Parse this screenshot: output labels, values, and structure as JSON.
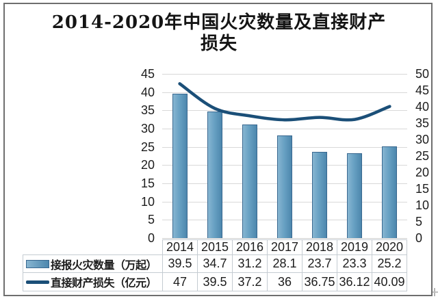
{
  "title": {
    "line1": "2014-2020年中国火灾数量及直接财产",
    "line2": "损失"
  },
  "chart_data": {
    "type": "bar",
    "title": "2014-2020年中国火灾数量及直接财产损失",
    "categories": [
      "2014",
      "2015",
      "2016",
      "2017",
      "2018",
      "2019",
      "2020"
    ],
    "series": [
      {
        "name": "接报火灾数量（万起）",
        "type": "bar",
        "axis": "left",
        "values": [
          39.5,
          34.7,
          31.2,
          28.1,
          23.7,
          23.3,
          25.2
        ]
      },
      {
        "name": "直接财产损失（亿元）",
        "type": "line",
        "axis": "right",
        "values": [
          47,
          39.5,
          37.2,
          36,
          36.75,
          36.12,
          40.09
        ]
      }
    ],
    "left_axis": {
      "min": 0,
      "max": 45,
      "step": 5,
      "ticks": [
        45,
        40,
        35,
        30,
        25,
        20,
        15,
        10,
        5,
        0
      ]
    },
    "right_axis": {
      "min": 0,
      "max": 50,
      "step": 5,
      "ticks": [
        50,
        45,
        40,
        35,
        30,
        25,
        20,
        15,
        10,
        5,
        0
      ]
    },
    "grid": true,
    "legend_position": "table-left"
  },
  "colors": {
    "bar_fill_light": "#87b5d1",
    "bar_fill_dark": "#4d87ad",
    "bar_border": "#38678f",
    "line": "#1b4f78",
    "gridline": "#d8d8d8",
    "table_border": "#c4cbd1",
    "frame_border": "#6e6e6e",
    "text": "#1c1c1c"
  }
}
